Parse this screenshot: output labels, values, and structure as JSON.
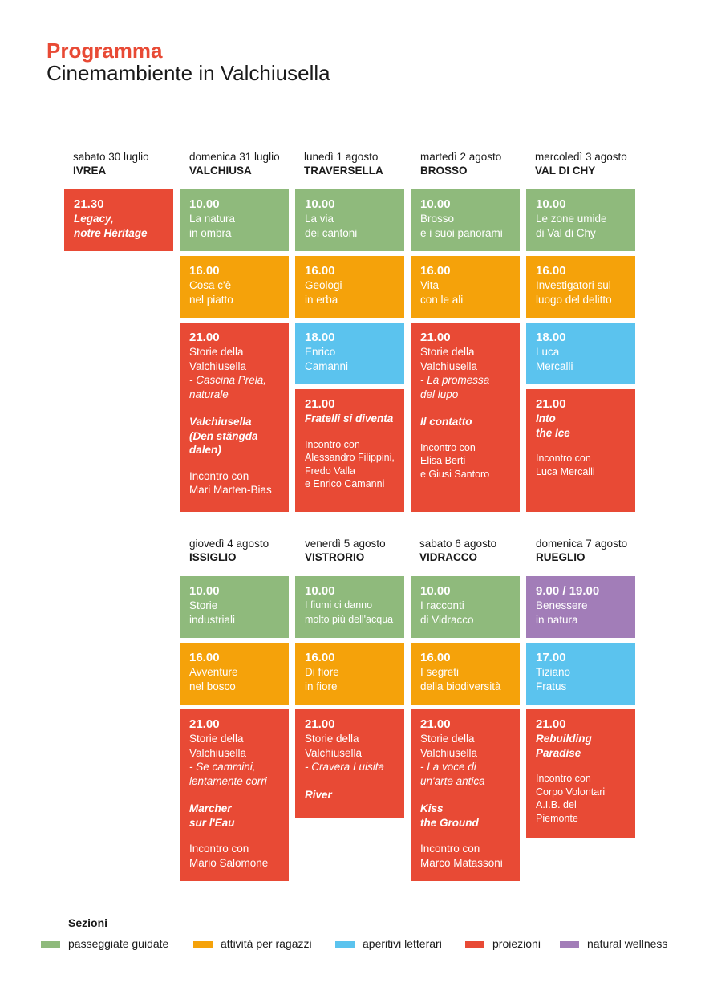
{
  "header": {
    "title": "Programma",
    "subtitle": "Cinemambiente in Valchiusella"
  },
  "colors": {
    "passeggiate": "#8fba7c",
    "ragazzi": "#f5a20a",
    "aperitivi": "#5bc3ee",
    "proiezioni": "#e84a35",
    "wellness": "#a27db8"
  },
  "days": [
    {
      "date": "sabato 30 luglio",
      "place": "IVREA"
    },
    {
      "date": "domenica 31 luglio",
      "place": "VALCHIUSA"
    },
    {
      "date": "lunedì 1 agosto",
      "place": "TRAVERSELLA"
    },
    {
      "date": "martedì 2 agosto",
      "place": "BROSSO"
    },
    {
      "date": "mercoledì 3 agosto",
      "place": "VAL DI CHY"
    },
    {
      "date": "giovedì 4 agosto",
      "place": "ISSIGLIO"
    },
    {
      "date": "venerdì 5 agosto",
      "place": "VISTRORIO"
    },
    {
      "date": "sabato 6 agosto",
      "place": "VIDRACCO"
    },
    {
      "date": "domenica 7 agosto",
      "place": "RUEGLIO"
    }
  ],
  "events": {
    "ivrea1": {
      "time": "21.30",
      "film1": "Legacy,",
      "film2": "notre Héritage"
    },
    "valchiusa1": {
      "time": "10.00",
      "l1": "La natura",
      "l2": "in ombra"
    },
    "valchiusa2": {
      "time": "16.00",
      "l1": "Cosa c'è",
      "l2": "nel piatto"
    },
    "valchiusa3": {
      "time": "21.00",
      "l1": "Storie della",
      "l2": "Valchiusella",
      "i1": " - Cascina Prela,",
      "i2": "naturale",
      "f1": "Valchiusella",
      "f2": "(Den stängda",
      "f3": "dalen)",
      "m1": "Incontro con",
      "m2": "Mari Marten-Bias"
    },
    "traversella1": {
      "time": "10.00",
      "l1": "La via",
      "l2": "dei cantoni"
    },
    "traversella2": {
      "time": "16.00",
      "l1": "Geologi",
      "l2": "in erba"
    },
    "traversella3": {
      "time": "18.00",
      "l1": "Enrico",
      "l2": "Camanni"
    },
    "traversella4": {
      "time": "21.00",
      "f1": "Fratelli si diventa",
      "m1": "Incontro con",
      "m2": "Alessandro Filippini,",
      "m3": "Fredo Valla",
      "m4": "e Enrico Camanni"
    },
    "brosso1": {
      "time": "10.00",
      "l1": "Brosso",
      "l2": "e i suoi panorami"
    },
    "brosso2": {
      "time": "16.00",
      "l1": "Vita",
      "l2": "con le ali"
    },
    "brosso3": {
      "time": "21.00",
      "l1": "Storie della",
      "l2": "Valchiusella",
      "i1": "- La promessa",
      "i2": "del lupo",
      "f1": "Il contatto",
      "m1": "Incontro con",
      "m2": "Elisa Berti",
      "m3": "e Giusi Santoro"
    },
    "valdichy1": {
      "time": "10.00",
      "l1": "Le zone umide",
      "l2": "di Val di Chy"
    },
    "valdichy2": {
      "time": "16.00",
      "l1": "Investigatori sul",
      "l2": "luogo del delitto"
    },
    "valdichy3": {
      "time": "18.00",
      "l1": "Luca",
      "l2": "Mercalli"
    },
    "valdichy4": {
      "time": "21.00",
      "f1": "Into",
      "f2": "the Ice",
      "m1": "Incontro con",
      "m2": "Luca Mercalli"
    },
    "issiglio1": {
      "time": "10.00",
      "l1": "Storie",
      "l2": "industriali"
    },
    "issiglio2": {
      "time": "16.00",
      "l1": "Avventure",
      "l2": "nel bosco"
    },
    "issiglio3": {
      "time": "21.00",
      "l1": "Storie della",
      "l2": "Valchiusella",
      "i1": "- Se cammini,",
      "i2": "lentamente corri",
      "f1": "Marcher",
      "f2": "sur l'Eau",
      "m1": "Incontro con",
      "m2": "Mario Salomone"
    },
    "vistrorio1": {
      "time": "10.00",
      "l1": "I fiumi ci danno",
      "l2": "molto più dell'acqua"
    },
    "vistrorio2": {
      "time": "16.00",
      "l1": "Di fiore",
      "l2": "in fiore"
    },
    "vistrorio3": {
      "time": "21.00",
      "l1": "Storie della",
      "l2": "Valchiusella",
      "i1": "- Cravera Luisita",
      "f1": "River"
    },
    "vidracco1": {
      "time": "10.00",
      "l1": "I racconti",
      "l2": "di Vidracco"
    },
    "vidracco2": {
      "time": "16.00",
      "l1": "I segreti",
      "l2": "della biodiversità"
    },
    "vidracco3": {
      "time": "21.00",
      "l1": "Storie della",
      "l2": "Valchiusella",
      "i1": "- La voce di",
      "i2": "un'arte antica",
      "f1": "Kiss",
      "f2": "the Ground",
      "m1": "Incontro con",
      "m2": "Marco Matassoni"
    },
    "rueglio1": {
      "time": "9.00 / 19.00",
      "l1": "Benessere",
      "l2": "in natura"
    },
    "rueglio2": {
      "time": "17.00",
      "l1": "Tiziano",
      "l2": "Fratus"
    },
    "rueglio3": {
      "time": "21.00",
      "f1": "Rebuilding",
      "f2": "Paradise",
      "m1": "Incontro con",
      "m2": "Corpo Volontari",
      "m3": "A.I.B. del",
      "m4": "Piemonte"
    }
  },
  "legend": {
    "title": "Sezioni",
    "items": [
      "passeggiate guidate",
      "attività per ragazzi",
      "aperitivi letterari",
      "proiezioni",
      "natural wellness"
    ]
  }
}
